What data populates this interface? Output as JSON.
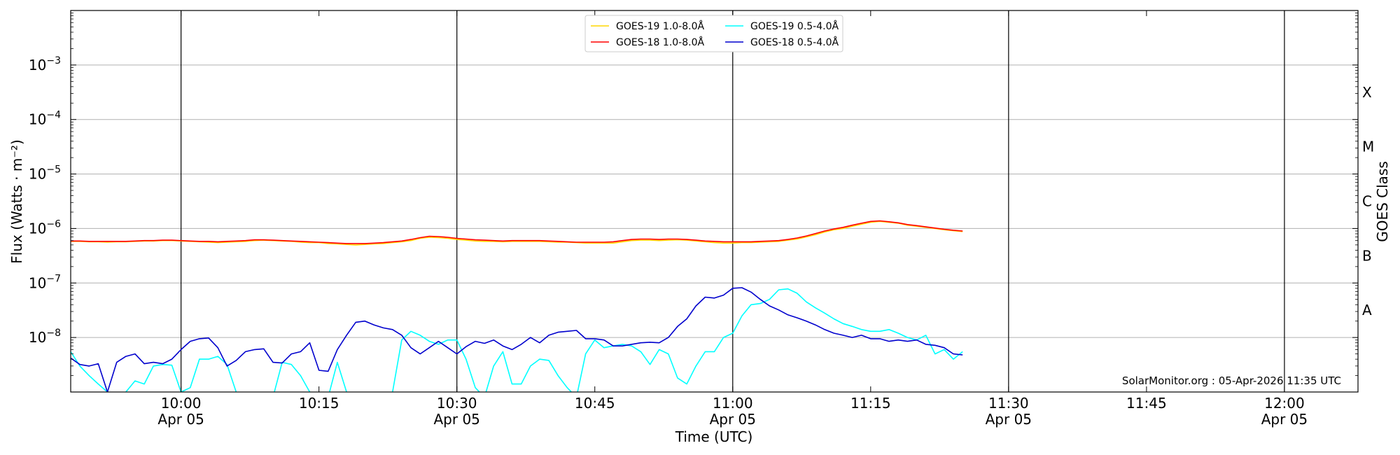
{
  "chart_data": {
    "type": "line",
    "xlabel": "Time (UTC)",
    "ylabel": "Flux (Watts · m⁻²)",
    "y2label": "GOES Class",
    "yscale": "log",
    "xlim": [
      "2026-04-05T09:48",
      "2026-04-05T12:08"
    ],
    "ylim": [
      1e-09,
      0.01
    ],
    "grid": "horizontal",
    "legend_position": "top-center",
    "credit": "SolarMonitor.org : 05-Apr-2026 11:35 UTC",
    "x_ticks": [
      {
        "time": "2026-04-05T10:00",
        "label": "10:00",
        "sublabel": "Apr 05",
        "vline": true
      },
      {
        "time": "2026-04-05T10:15",
        "label": "10:15",
        "sublabel": "",
        "vline": false
      },
      {
        "time": "2026-04-05T10:30",
        "label": "10:30",
        "sublabel": "Apr 05",
        "vline": true
      },
      {
        "time": "2026-04-05T10:45",
        "label": "10:45",
        "sublabel": "",
        "vline": false
      },
      {
        "time": "2026-04-05T11:00",
        "label": "11:00",
        "sublabel": "Apr 05",
        "vline": true
      },
      {
        "time": "2026-04-05T11:15",
        "label": "11:15",
        "sublabel": "",
        "vline": false
      },
      {
        "time": "2026-04-05T11:30",
        "label": "11:30",
        "sublabel": "Apr 05",
        "vline": true
      },
      {
        "time": "2026-04-05T11:45",
        "label": "11:45",
        "sublabel": "",
        "vline": false
      },
      {
        "time": "2026-04-05T12:00",
        "label": "12:00",
        "sublabel": "Apr 05",
        "vline": true
      }
    ],
    "y_ticks": [
      {
        "value": 1e-08,
        "base": "10",
        "exp": "−8"
      },
      {
        "value": 1e-07,
        "base": "10",
        "exp": "−7"
      },
      {
        "value": 1e-06,
        "base": "10",
        "exp": "−6"
      },
      {
        "value": 1e-05,
        "base": "10",
        "exp": "−5"
      },
      {
        "value": 0.0001,
        "base": "10",
        "exp": "−4"
      },
      {
        "value": 0.001,
        "base": "10",
        "exp": "−3"
      }
    ],
    "goes_classes": [
      {
        "label": "A",
        "value": 3.16e-08
      },
      {
        "label": "B",
        "value": 3.16e-07
      },
      {
        "label": "C",
        "value": 3.16e-06
      },
      {
        "label": "M",
        "value": 3.16e-05
      },
      {
        "label": "X",
        "value": 0.000316
      }
    ],
    "series_x": [
      "2026-04-05T09:48",
      "2026-04-05T09:49",
      "2026-04-05T09:50",
      "2026-04-05T09:51",
      "2026-04-05T09:52",
      "2026-04-05T09:53",
      "2026-04-05T09:54",
      "2026-04-05T09:55",
      "2026-04-05T09:56",
      "2026-04-05T09:57",
      "2026-04-05T09:58",
      "2026-04-05T09:59",
      "2026-04-05T10:00",
      "2026-04-05T10:01",
      "2026-04-05T10:02",
      "2026-04-05T10:03",
      "2026-04-05T10:04",
      "2026-04-05T10:05",
      "2026-04-05T10:06",
      "2026-04-05T10:07",
      "2026-04-05T10:08",
      "2026-04-05T10:09",
      "2026-04-05T10:10",
      "2026-04-05T10:11",
      "2026-04-05T10:12",
      "2026-04-05T10:13",
      "2026-04-05T10:14",
      "2026-04-05T10:15",
      "2026-04-05T10:16",
      "2026-04-05T10:17",
      "2026-04-05T10:18",
      "2026-04-05T10:19",
      "2026-04-05T10:20",
      "2026-04-05T10:21",
      "2026-04-05T10:22",
      "2026-04-05T10:23",
      "2026-04-05T10:24",
      "2026-04-05T10:25",
      "2026-04-05T10:26",
      "2026-04-05T10:27",
      "2026-04-05T10:28",
      "2026-04-05T10:29",
      "2026-04-05T10:30",
      "2026-04-05T10:31",
      "2026-04-05T10:32",
      "2026-04-05T10:33",
      "2026-04-05T10:34",
      "2026-04-05T10:35",
      "2026-04-05T10:36",
      "2026-04-05T10:37",
      "2026-04-05T10:38",
      "2026-04-05T10:39",
      "2026-04-05T10:40",
      "2026-04-05T10:41",
      "2026-04-05T10:42",
      "2026-04-05T10:43",
      "2026-04-05T10:44",
      "2026-04-05T10:45",
      "2026-04-05T10:46",
      "2026-04-05T10:47",
      "2026-04-05T10:48",
      "2026-04-05T10:49",
      "2026-04-05T10:50",
      "2026-04-05T10:51",
      "2026-04-05T10:52",
      "2026-04-05T10:53",
      "2026-04-05T10:54",
      "2026-04-05T10:55",
      "2026-04-05T10:56",
      "2026-04-05T10:57",
      "2026-04-05T10:58",
      "2026-04-05T10:59",
      "2026-04-05T11:00",
      "2026-04-05T11:01",
      "2026-04-05T11:02",
      "2026-04-05T11:03",
      "2026-04-05T11:04",
      "2026-04-05T11:05",
      "2026-04-05T11:06",
      "2026-04-05T11:07",
      "2026-04-05T11:08",
      "2026-04-05T11:09",
      "2026-04-05T11:10",
      "2026-04-05T11:11",
      "2026-04-05T11:12",
      "2026-04-05T11:13",
      "2026-04-05T11:14",
      "2026-04-05T11:15",
      "2026-04-05T11:16",
      "2026-04-05T11:17",
      "2026-04-05T11:18",
      "2026-04-05T11:19",
      "2026-04-05T11:20",
      "2026-04-05T11:21",
      "2026-04-05T11:22",
      "2026-04-05T11:23",
      "2026-04-05T11:24",
      "2026-04-05T11:25",
      "2026-04-05T11:26",
      "2026-04-05T11:27"
    ],
    "series": [
      {
        "name": "GOES-19 1.0-8.0Å",
        "color": "#ffd700",
        "values": [
          5.8e-07,
          5.8e-07,
          5.7e-07,
          5.7e-07,
          5.6e-07,
          5.7e-07,
          5.7e-07,
          5.8e-07,
          5.9e-07,
          5.9e-07,
          6e-07,
          6e-07,
          5.9e-07,
          5.8e-07,
          5.7e-07,
          5.6e-07,
          5.5e-07,
          5.6e-07,
          5.7e-07,
          5.8e-07,
          6e-07,
          6.1e-07,
          6e-07,
          5.9e-07,
          5.8e-07,
          5.6e-07,
          5.5e-07,
          5.5e-07,
          5.3e-07,
          5.2e-07,
          5.1e-07,
          5e-07,
          5.1e-07,
          5.2e-07,
          5.3e-07,
          5.5e-07,
          5.7e-07,
          6e-07,
          6.6e-07,
          6.9e-07,
          6.8e-07,
          6.6e-07,
          6.3e-07,
          6.1e-07,
          5.9e-07,
          5.8e-07,
          5.8e-07,
          5.7e-07,
          5.8e-07,
          5.8e-07,
          5.8e-07,
          5.8e-07,
          5.7e-07,
          5.6e-07,
          5.6e-07,
          5.5e-07,
          5.4e-07,
          5.4e-07,
          5.4e-07,
          5.4e-07,
          5.7e-07,
          6e-07,
          6.1e-07,
          6.1e-07,
          6e-07,
          6.1e-07,
          6.2e-07,
          6.1e-07,
          5.9e-07,
          5.7e-07,
          5.5e-07,
          5.4e-07,
          5.4e-07,
          5.5e-07,
          5.5e-07,
          5.6e-07,
          5.7e-07,
          5.8e-07,
          6.1e-07,
          6.4e-07,
          7e-07,
          7.7e-07,
          8.6e-07,
          9.5e-07,
          1e-06,
          1.1e-06,
          1.2e-06,
          1.3e-06,
          1.35e-06,
          1.3e-06,
          1.25e-06,
          1.15e-06,
          1.1e-06,
          1.05e-06,
          1e-06,
          9.5e-07,
          9.1e-07,
          8.8e-07
        ]
      },
      {
        "name": "GOES-18 1.0-8.0Å",
        "color": "#ff0000",
        "values": [
          5.9e-07,
          5.9e-07,
          5.8e-07,
          5.8e-07,
          5.8e-07,
          5.8e-07,
          5.8e-07,
          5.9e-07,
          6e-07,
          6e-07,
          6.1e-07,
          6.1e-07,
          6e-07,
          5.9e-07,
          5.8e-07,
          5.8e-07,
          5.7e-07,
          5.8e-07,
          5.9e-07,
          6e-07,
          6.2e-07,
          6.2e-07,
          6.1e-07,
          6e-07,
          5.9e-07,
          5.8e-07,
          5.7e-07,
          5.6e-07,
          5.5e-07,
          5.4e-07,
          5.3e-07,
          5.3e-07,
          5.3e-07,
          5.4e-07,
          5.5e-07,
          5.7e-07,
          5.9e-07,
          6.3e-07,
          6.8e-07,
          7.2e-07,
          7.1e-07,
          6.9e-07,
          6.6e-07,
          6.4e-07,
          6.2e-07,
          6.1e-07,
          6e-07,
          5.9e-07,
          6e-07,
          6e-07,
          6e-07,
          6e-07,
          5.9e-07,
          5.8e-07,
          5.7e-07,
          5.6e-07,
          5.6e-07,
          5.6e-07,
          5.6e-07,
          5.7e-07,
          6e-07,
          6.3e-07,
          6.4e-07,
          6.4e-07,
          6.3e-07,
          6.4e-07,
          6.4e-07,
          6.3e-07,
          6.1e-07,
          5.9e-07,
          5.8e-07,
          5.7e-07,
          5.7e-07,
          5.7e-07,
          5.7e-07,
          5.8e-07,
          5.9e-07,
          6e-07,
          6.3e-07,
          6.7e-07,
          7.3e-07,
          8.1e-07,
          9e-07,
          9.8e-07,
          1.05e-06,
          1.15e-06,
          1.25e-06,
          1.35e-06,
          1.38e-06,
          1.33e-06,
          1.27e-06,
          1.18e-06,
          1.13e-06,
          1.07e-06,
          1.02e-06,
          9.7e-07,
          9.3e-07,
          9e-07
        ]
      },
      {
        "name": "GOES-19 0.5-4.0Å",
        "color": "#00ffff",
        "values": [
          5.5e-09,
          3e-09,
          2e-09,
          1.4e-09,
          1e-09,
          8e-10,
          1e-09,
          1.6e-09,
          1.4e-09,
          3e-09,
          3.2e-09,
          3.1e-09,
          1e-09,
          1.2e-09,
          4e-09,
          4e-09,
          4.5e-09,
          3.2e-09,
          1e-09,
          8e-10,
          8e-10,
          8e-10,
          8e-10,
          3.5e-09,
          3.2e-09,
          2e-09,
          1e-09,
          9e-10,
          8e-10,
          3.5e-09,
          1e-09,
          8e-10,
          8e-10,
          8e-10,
          8e-10,
          1e-09,
          9e-09,
          1.3e-08,
          1.1e-08,
          8.5e-09,
          7.5e-09,
          9e-09,
          9e-09,
          4e-09,
          1.2e-09,
          8e-10,
          3e-09,
          5.5e-09,
          1.4e-09,
          1.4e-09,
          3e-09,
          4e-09,
          3.8e-09,
          2e-09,
          1.2e-09,
          8e-10,
          5e-09,
          9e-09,
          6.5e-09,
          7e-09,
          7.5e-09,
          7e-09,
          5.5e-09,
          3.2e-09,
          6e-09,
          5e-09,
          1.8e-09,
          1.4e-09,
          3e-09,
          5.5e-09,
          5.5e-09,
          1e-08,
          1.2e-08,
          2.5e-08,
          4e-08,
          4.2e-08,
          5e-08,
          7.5e-08,
          7.8e-08,
          6.5e-08,
          4.5e-08,
          3.5e-08,
          2.8e-08,
          2.2e-08,
          1.8e-08,
          1.6e-08,
          1.4e-08,
          1.3e-08,
          1.3e-08,
          1.4e-08,
          1.2e-08,
          1e-08,
          9e-09,
          1.1e-08,
          5e-09,
          6e-09,
          4e-09,
          5.5e-09
        ]
      },
      {
        "name": "GOES-18 0.5-4.0Å",
        "color": "#0000cd",
        "values": [
          4.2e-09,
          3.2e-09,
          3e-09,
          3.3e-09,
          1e-09,
          3.5e-09,
          4.5e-09,
          5e-09,
          3.3e-09,
          3.5e-09,
          3.3e-09,
          4e-09,
          6e-09,
          8.5e-09,
          9.5e-09,
          9.8e-09,
          6.5e-09,
          3e-09,
          3.8e-09,
          5.5e-09,
          6e-09,
          6.2e-09,
          3.5e-09,
          3.4e-09,
          5e-09,
          5.5e-09,
          8e-09,
          2.5e-09,
          2.4e-09,
          6e-09,
          1.1e-08,
          1.9e-08,
          2e-08,
          1.7e-08,
          1.5e-08,
          1.4e-08,
          1.1e-08,
          6.5e-09,
          5e-09,
          6.5e-09,
          8.5e-09,
          6.5e-09,
          5e-09,
          6.8e-09,
          8.5e-09,
          7.8e-09,
          9e-09,
          7e-09,
          6e-09,
          7.5e-09,
          1e-08,
          8e-09,
          1.1e-08,
          1.25e-08,
          1.3e-08,
          1.35e-08,
          9.5e-09,
          9.5e-09,
          9e-09,
          7e-09,
          7e-09,
          7.5e-09,
          8e-09,
          8.2e-09,
          8e-09,
          1e-08,
          1.6e-08,
          2.2e-08,
          3.8e-08,
          5.5e-08,
          5.3e-08,
          6e-08,
          8e-08,
          8.2e-08,
          6.8e-08,
          5e-08,
          3.8e-08,
          3.2e-08,
          2.6e-08,
          2.3e-08,
          2e-08,
          1.7e-08,
          1.4e-08,
          1.2e-08,
          1.1e-08,
          1e-08,
          1.1e-08,
          9.5e-09,
          9.5e-09,
          8.5e-09,
          9e-09,
          8.5e-09,
          9e-09,
          7.5e-09,
          7.2e-09,
          6.5e-09,
          5e-09,
          4.8e-09
        ]
      }
    ]
  }
}
